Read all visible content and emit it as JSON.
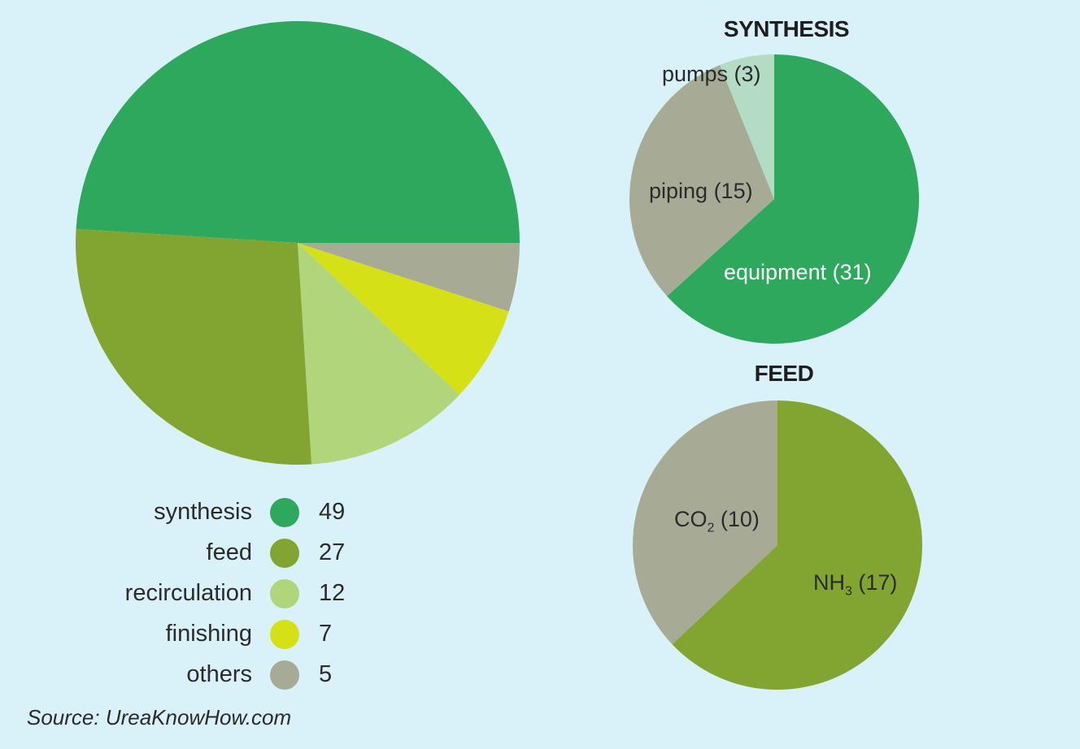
{
  "colors": {
    "background": "#d9f1f8",
    "synthesis": "#2ea85c",
    "feed": "#82a532",
    "recirculation": "#b0d57a",
    "finishing": "#d6e016",
    "others": "#a7ab95",
    "pumps": "#b4dcc4"
  },
  "chart_data": [
    {
      "type": "pie",
      "title": "",
      "slices": [
        {
          "label": "synthesis",
          "value": 49,
          "color": "#2ea85c"
        },
        {
          "label": "feed",
          "value": 27,
          "color": "#82a532"
        },
        {
          "label": "recirculation",
          "value": 12,
          "color": "#b0d57a"
        },
        {
          "label": "finishing",
          "value": 7,
          "color": "#d6e016"
        },
        {
          "label": "others",
          "value": 5,
          "color": "#a7ab95"
        }
      ],
      "legend_position": "bottom"
    },
    {
      "type": "pie",
      "title": "SYNTHESIS",
      "slices": [
        {
          "label": "equipment (31)",
          "value": 31,
          "color": "#2ea85c"
        },
        {
          "label": "piping (15)",
          "value": 15,
          "color": "#a7ab95"
        },
        {
          "label": "pumps (3)",
          "value": 3,
          "color": "#b4dcc4"
        }
      ]
    },
    {
      "type": "pie",
      "title": "FEED",
      "slices": [
        {
          "label": "NH3 (17)",
          "main": "NH",
          "sub": "3",
          "rest": " (17)",
          "value": 17,
          "color": "#82a532"
        },
        {
          "label": "CO2 (10)",
          "main": "CO",
          "sub": "2",
          "rest": " (10)",
          "value": 10,
          "color": "#a7ab95"
        }
      ]
    }
  ],
  "source": "Source: UreaKnowHow.com"
}
